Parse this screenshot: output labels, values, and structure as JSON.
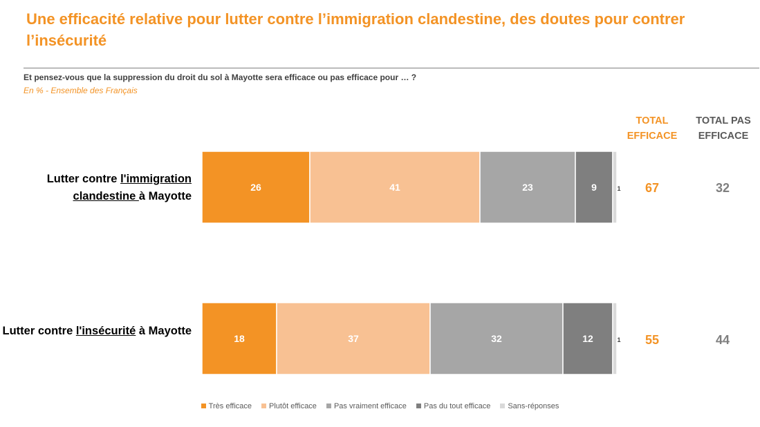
{
  "title": "Une efficacité relative pour lutter contre l’immigration clandestine, des doutes pour contrer l’insécurité",
  "question": "Et pensez-vous que la suppression du droit du sol à Mayotte sera efficace ou pas efficace pour … ?",
  "subtitle": "En % - Ensemble des Français",
  "columns": {
    "total_efficace": "TOTAL EFFICACE",
    "total_pas_efficace": "TOTAL PAS EFFICACE"
  },
  "rows": [
    {
      "label_pre": "Lutter contre ",
      "label_ul": "l'immigration clandestine ",
      "label_post": "à Mayotte",
      "total_efficace": "67",
      "total_pas_efficace": "32"
    },
    {
      "label_pre": "Lutter contre ",
      "label_ul": "l'insécurité",
      "label_post": " à Mayotte",
      "total_efficace": "55",
      "total_pas_efficace": "44"
    }
  ],
  "colors": {
    "accent": "#f39325",
    "tres": "#f39325",
    "plutot": "#f8c193",
    "pas_vraiment": "#a6a6a6",
    "pas_du_tout": "#7f7f7f",
    "sans_reponse": "#d9d9d9"
  },
  "chart_data": {
    "type": "bar",
    "orientation": "horizontal",
    "stacked": true,
    "unit": "%",
    "categories": [
      "Lutter contre l'immigration clandestine à Mayotte",
      "Lutter contre l'insécurité à Mayotte"
    ],
    "series": [
      {
        "name": "Très efficace",
        "values": [
          26,
          18
        ]
      },
      {
        "name": "Plutôt efficace",
        "values": [
          41,
          37
        ]
      },
      {
        "name": "Pas vraiment efficace",
        "values": [
          23,
          32
        ]
      },
      {
        "name": "Pas du tout efficace",
        "values": [
          9,
          12
        ]
      },
      {
        "name": "Sans-réponses",
        "values": [
          1,
          1
        ]
      }
    ],
    "legend_position": "bottom"
  }
}
